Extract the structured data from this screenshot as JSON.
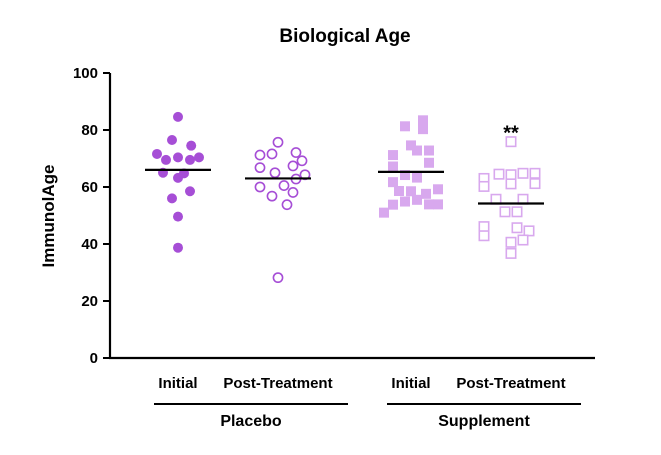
{
  "chart_data": {
    "type": "scatter",
    "title": "Biological Age",
    "ylabel": "ImmunolAge",
    "xlabel": "",
    "ylim": [
      0,
      100
    ],
    "yticks": [
      0,
      20,
      40,
      60,
      80,
      100
    ],
    "groups": [
      {
        "label": "Placebo",
        "categories": [
          0,
          1
        ]
      },
      {
        "label": "Supplement",
        "categories": [
          2,
          3
        ]
      }
    ],
    "categories": [
      "Initial",
      "Post-Treatment",
      "Initial",
      "Post-Treatment"
    ],
    "series": [
      {
        "category": "Initial",
        "group": "Placebo",
        "marker": "circle",
        "filled": true,
        "color": "#a64ed6",
        "mean": 66,
        "points": [
          [
            0,
            84.6
          ],
          [
            -0.35,
            71.6
          ],
          [
            -0.2,
            69.5
          ],
          [
            0,
            70.4
          ],
          [
            0.2,
            69.5
          ],
          [
            0.35,
            70.4
          ],
          [
            -0.1,
            76.5
          ],
          [
            0.22,
            74.5
          ],
          [
            -0.25,
            65
          ],
          [
            0.1,
            64.8
          ],
          [
            0,
            63.2
          ],
          [
            -0.1,
            56
          ],
          [
            0.2,
            58.5
          ],
          [
            0,
            49.6
          ],
          [
            0,
            38.7
          ]
        ]
      },
      {
        "category": "Post-Treatment",
        "group": "Placebo",
        "marker": "circle",
        "filled": false,
        "color": "#a64ed6",
        "mean": 63,
        "points": [
          [
            -0.3,
            71.2
          ],
          [
            -0.1,
            71.6
          ],
          [
            0.3,
            72.1
          ],
          [
            0,
            75.7
          ],
          [
            0.25,
            67.4
          ],
          [
            -0.3,
            66.8
          ],
          [
            -0.05,
            65
          ],
          [
            0.4,
            69.2
          ],
          [
            0.1,
            60.5
          ],
          [
            -0.3,
            60
          ],
          [
            0.3,
            62.8
          ],
          [
            0.45,
            64.3
          ],
          [
            -0.1,
            56.8
          ],
          [
            0.25,
            58.1
          ],
          [
            0.15,
            53.8
          ],
          [
            0,
            28.2
          ]
        ]
      },
      {
        "category": "Initial",
        "group": "Supplement",
        "marker": "square",
        "filled": true,
        "color": "#d8a8ee",
        "mean": 65.3,
        "points": [
          [
            0.2,
            83.4
          ],
          [
            -0.1,
            81.3
          ],
          [
            0.2,
            80.3
          ],
          [
            -0.3,
            71.2
          ],
          [
            0.1,
            72.8
          ],
          [
            0.3,
            72.8
          ],
          [
            0,
            74.6
          ],
          [
            -0.3,
            67.2
          ],
          [
            0.3,
            68.5
          ],
          [
            -0.1,
            64.2
          ],
          [
            0.1,
            63.3
          ],
          [
            -0.3,
            61.7
          ],
          [
            0.45,
            59.2
          ],
          [
            0,
            58.5
          ],
          [
            -0.2,
            58.6
          ],
          [
            0.25,
            57.6
          ],
          [
            -0.3,
            53.8
          ],
          [
            0.1,
            55.5
          ],
          [
            -0.1,
            54.9
          ],
          [
            0.45,
            53.9
          ],
          [
            0.3,
            53.9
          ],
          [
            -0.45,
            51
          ]
        ]
      },
      {
        "category": "Post-Treatment",
        "group": "Supplement",
        "marker": "square",
        "filled": false,
        "color": "#d8a8ee",
        "mean": 54.2,
        "points": [
          [
            0,
            75.9
          ],
          [
            -0.45,
            63
          ],
          [
            -0.2,
            64.5
          ],
          [
            0,
            64.3
          ],
          [
            0.2,
            64.8
          ],
          [
            0.4,
            64.8
          ],
          [
            -0.45,
            60.2
          ],
          [
            0,
            61.1
          ],
          [
            0.4,
            61.2
          ],
          [
            -0.25,
            55.7
          ],
          [
            0.2,
            55.7
          ],
          [
            -0.1,
            51.3
          ],
          [
            0.1,
            51.3
          ],
          [
            0.3,
            44.6
          ],
          [
            -0.45,
            46.1
          ],
          [
            -0.45,
            42.9
          ],
          [
            0.1,
            45.7
          ],
          [
            0.2,
            41.4
          ],
          [
            0,
            40.6
          ],
          [
            0,
            36.7
          ]
        ]
      }
    ],
    "annotations": [
      {
        "category_index": 3,
        "y": 82,
        "text": "**"
      }
    ],
    "grid": false,
    "legend": "none"
  }
}
